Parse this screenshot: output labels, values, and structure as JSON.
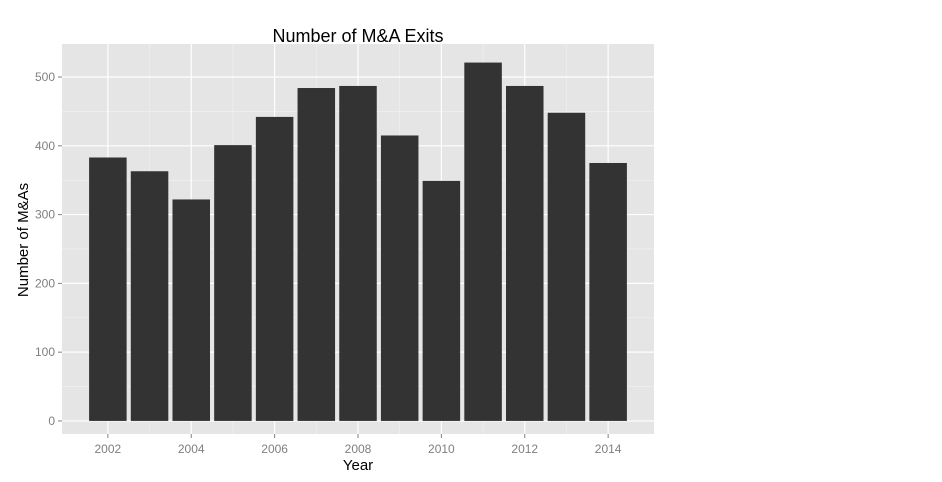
{
  "chart_data": {
    "type": "bar",
    "title": "Number of M&A Exits",
    "xlabel": "Year",
    "ylabel": "Number of M&As",
    "categories": [
      "2002",
      "2003",
      "2004",
      "2005",
      "2006",
      "2007",
      "2008",
      "2009",
      "2010",
      "2011",
      "2012",
      "2013",
      "2014"
    ],
    "x": [
      2002,
      2003,
      2004,
      2005,
      2006,
      2007,
      2008,
      2009,
      2010,
      2011,
      2012,
      2013,
      2014
    ],
    "values": [
      383,
      363,
      322,
      401,
      442,
      484,
      487,
      415,
      349,
      521,
      487,
      448,
      375
    ],
    "xlim": [
      2000.9,
      2015.1
    ],
    "ylim": [
      -19,
      548
    ],
    "x_ticks": [
      2002,
      2004,
      2006,
      2008,
      2010,
      2012,
      2014
    ],
    "x_tick_labels": [
      "2002",
      "2004",
      "2006",
      "2008",
      "2010",
      "2012",
      "2014"
    ],
    "y_ticks": [
      0,
      100,
      200,
      300,
      400,
      500
    ],
    "y_tick_labels": [
      "0",
      "100",
      "200",
      "300",
      "400",
      "500"
    ],
    "grid": true,
    "legend": "none",
    "colors": {
      "panel_background": "#e5e5e5",
      "major_grid": "#ffffff",
      "minor_grid": "#f2f2f2",
      "bar_fill": "#333333",
      "tick_label": "#7f7f7f",
      "text": "#000000"
    }
  }
}
